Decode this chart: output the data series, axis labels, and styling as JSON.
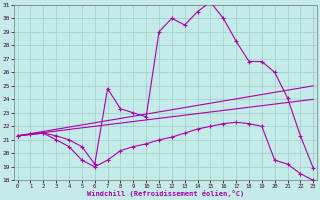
{
  "xlabel": "Windchill (Refroidissement éolien,°C)",
  "bg_color": "#c5ebe8",
  "grid_color": "#9ecece",
  "line_color": "#aa00aa",
  "xmin": 0,
  "xmax": 23,
  "ymin": 18,
  "ymax": 31,
  "curve_top_x": [
    0,
    1,
    2,
    3,
    4,
    5,
    6,
    7,
    8,
    9,
    10,
    11,
    12,
    13,
    14,
    15,
    16,
    17,
    18,
    19,
    20,
    21,
    22,
    23
  ],
  "curve_top_y": [
    21.3,
    21.4,
    21.5,
    21.3,
    21.0,
    20.5,
    19.2,
    24.8,
    23.3,
    23.0,
    22.7,
    29.0,
    30.0,
    29.5,
    30.5,
    31.2,
    30.0,
    28.3,
    26.8,
    26.8,
    26.0,
    24.1,
    21.3,
    18.9
  ],
  "curve_bot_x": [
    0,
    1,
    2,
    3,
    4,
    5,
    6,
    7,
    8,
    9,
    10,
    11,
    12,
    13,
    14,
    15,
    16,
    17,
    18,
    19,
    20,
    21,
    22,
    23
  ],
  "curve_bot_y": [
    21.3,
    21.4,
    21.5,
    21.0,
    20.5,
    19.5,
    19.0,
    19.5,
    20.2,
    20.5,
    20.7,
    21.0,
    21.2,
    21.5,
    21.8,
    22.0,
    22.2,
    22.3,
    22.2,
    22.0,
    19.5,
    19.2,
    18.5,
    18.0
  ],
  "line1_x": [
    0,
    23
  ],
  "line1_y": [
    21.3,
    25.0
  ],
  "line2_x": [
    0,
    23
  ],
  "line2_y": [
    21.3,
    24.0
  ]
}
